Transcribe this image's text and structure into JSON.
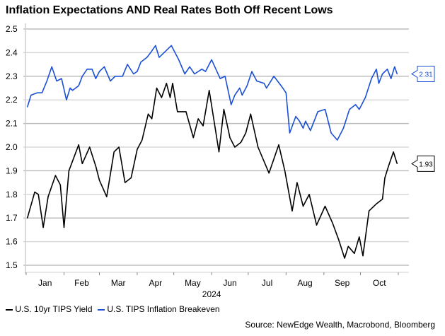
{
  "chart_data": {
    "type": "line",
    "title": "Inflation Expectations AND Real Rates Both Off Recent Lows",
    "xlabel": "2024",
    "ylabel": "",
    "ylim": [
      1.5,
      2.5
    ],
    "yticks": [
      "2.5",
      "2.4",
      "2.3",
      "2.2",
      "2.1",
      "2.0",
      "1.9",
      "1.8",
      "1.7",
      "1.6",
      "1.5"
    ],
    "xticks": [
      "Jan",
      "Feb",
      "Mar",
      "Apr",
      "May",
      "Jun",
      "Jul",
      "Aug",
      "Sep",
      "Oct"
    ],
    "grid": true,
    "legend": "bottom-left",
    "source": "Source: NewEdge Wealth, Macrobond, Bloomberg",
    "series": [
      {
        "name": "U.S. 10yr TIPS Yield",
        "color": "#000000",
        "last_label": "1.93",
        "x": [
          "2024-01-02",
          "2024-01-08",
          "2024-01-11",
          "2024-01-15",
          "2024-01-19",
          "2024-01-25",
          "2024-01-29",
          "2024-02-01",
          "2024-02-05",
          "2024-02-13",
          "2024-02-16",
          "2024-02-22",
          "2024-02-27",
          "2024-03-01",
          "2024-03-07",
          "2024-03-13",
          "2024-03-17",
          "2024-03-22",
          "2024-03-27",
          "2024-04-01",
          "2024-04-05",
          "2024-04-10",
          "2024-04-13",
          "2024-04-17",
          "2024-04-21",
          "2024-04-25",
          "2024-04-28",
          "2024-04-30",
          "2024-05-04",
          "2024-05-11",
          "2024-05-17",
          "2024-05-21",
          "2024-05-25",
          "2024-05-30",
          "2024-06-07",
          "2024-06-11",
          "2024-06-16",
          "2024-06-20",
          "2024-06-25",
          "2024-06-29",
          "2024-07-03",
          "2024-07-09",
          "2024-07-18",
          "2024-07-26",
          "2024-07-31",
          "2024-08-06",
          "2024-08-10",
          "2024-08-15",
          "2024-08-20",
          "2024-08-26",
          "2024-09-02",
          "2024-09-08",
          "2024-09-13",
          "2024-09-18",
          "2024-09-21",
          "2024-09-26",
          "2024-09-30",
          "2024-10-03",
          "2024-10-08",
          "2024-10-14",
          "2024-10-19",
          "2024-10-21",
          "2024-10-24",
          "2024-10-28",
          "2024-10-31"
        ],
        "values": [
          1.7,
          1.81,
          1.8,
          1.66,
          1.79,
          1.88,
          1.84,
          1.66,
          1.9,
          2.01,
          1.93,
          2.0,
          1.92,
          1.86,
          1.79,
          1.98,
          2.0,
          1.85,
          1.87,
          1.99,
          2.03,
          2.14,
          2.12,
          2.25,
          2.21,
          2.27,
          2.21,
          2.27,
          2.15,
          2.15,
          2.04,
          2.12,
          2.09,
          2.24,
          1.98,
          2.16,
          2.04,
          2.0,
          2.02,
          2.06,
          2.14,
          2.0,
          1.89,
          2.01,
          1.9,
          1.73,
          1.85,
          1.75,
          1.8,
          1.67,
          1.75,
          1.68,
          1.61,
          1.53,
          1.58,
          1.55,
          1.62,
          1.54,
          1.73,
          1.76,
          1.78,
          1.87,
          1.92,
          1.98,
          1.93
        ]
      },
      {
        "name": "U.S. TIPS Inflation Breakeven",
        "color": "#1a4fd6",
        "last_label": "2.31",
        "x": [
          "2024-01-02",
          "2024-01-05",
          "2024-01-10",
          "2024-01-14",
          "2024-01-18",
          "2024-01-22",
          "2024-01-26",
          "2024-01-30",
          "2024-02-03",
          "2024-02-06",
          "2024-02-08",
          "2024-02-13",
          "2024-02-16",
          "2024-02-20",
          "2024-02-24",
          "2024-02-27",
          "2024-03-01",
          "2024-03-05",
          "2024-03-10",
          "2024-03-14",
          "2024-03-20",
          "2024-03-24",
          "2024-03-29",
          "2024-04-01",
          "2024-04-04",
          "2024-04-09",
          "2024-04-12",
          "2024-04-16",
          "2024-04-19",
          "2024-04-23",
          "2024-04-29",
          "2024-05-05",
          "2024-05-10",
          "2024-05-14",
          "2024-05-18",
          "2024-05-24",
          "2024-05-27",
          "2024-06-01",
          "2024-06-08",
          "2024-06-12",
          "2024-06-17",
          "2024-06-20",
          "2024-06-24",
          "2024-06-26",
          "2024-06-30",
          "2024-07-04",
          "2024-07-08",
          "2024-07-14",
          "2024-07-16",
          "2024-07-22",
          "2024-07-28",
          "2024-08-01",
          "2024-08-04",
          "2024-08-09",
          "2024-08-12",
          "2024-08-15",
          "2024-08-17",
          "2024-08-21",
          "2024-08-27",
          "2024-09-02",
          "2024-09-07",
          "2024-09-12",
          "2024-09-17",
          "2024-09-22",
          "2024-09-27",
          "2024-09-30",
          "2024-10-05",
          "2024-10-10",
          "2024-10-14",
          "2024-10-16",
          "2024-10-19",
          "2024-10-23",
          "2024-10-26",
          "2024-10-29",
          "2024-10-31"
        ],
        "values": [
          2.17,
          2.22,
          2.23,
          2.23,
          2.28,
          2.34,
          2.28,
          2.29,
          2.2,
          2.25,
          2.24,
          2.26,
          2.3,
          2.33,
          2.33,
          2.29,
          2.32,
          2.34,
          2.28,
          2.3,
          2.3,
          2.35,
          2.31,
          2.32,
          2.36,
          2.38,
          2.4,
          2.43,
          2.38,
          2.4,
          2.43,
          2.37,
          2.31,
          2.34,
          2.31,
          2.33,
          2.32,
          2.37,
          2.29,
          2.3,
          2.18,
          2.22,
          2.25,
          2.22,
          2.26,
          2.32,
          2.28,
          2.27,
          2.25,
          2.3,
          2.26,
          2.23,
          2.06,
          2.13,
          2.11,
          2.08,
          2.11,
          2.07,
          2.15,
          2.16,
          2.06,
          2.03,
          2.08,
          2.16,
          2.18,
          2.16,
          2.21,
          2.29,
          2.33,
          2.27,
          2.31,
          2.33,
          2.29,
          2.34,
          2.31
        ]
      }
    ]
  }
}
